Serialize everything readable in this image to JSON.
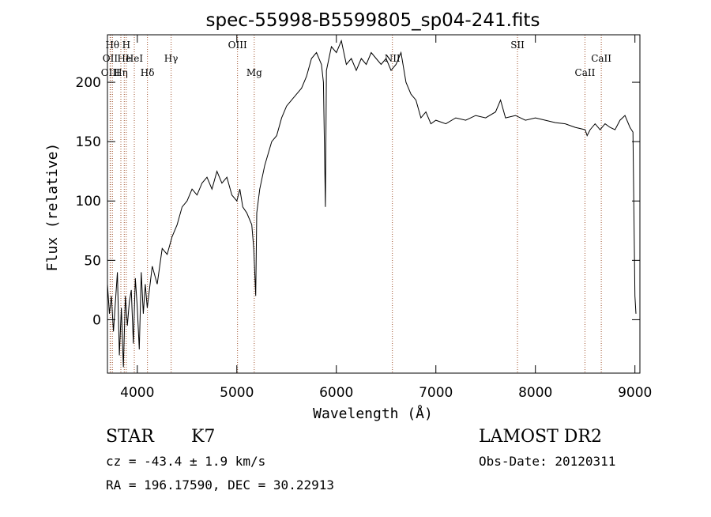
{
  "chart_data": {
    "type": "line",
    "title": "spec-55998-B5599805_sp04-241.fits",
    "xlabel": "Wavelength (Å)",
    "ylabel": "Flux (relative)",
    "xlim": [
      3700,
      9050
    ],
    "ylim": [
      -45,
      240
    ],
    "xticks": [
      4000,
      5000,
      6000,
      7000,
      8000,
      9000
    ],
    "yticks": [
      0,
      50,
      100,
      150,
      200
    ],
    "grid": false,
    "line_color": "#000000",
    "marker_color": "#a0522d",
    "series": [
      {
        "x": [
          3700,
          3720,
          3740,
          3760,
          3780,
          3800,
          3820,
          3840,
          3860,
          3880,
          3900,
          3920,
          3940,
          3960,
          3980,
          4000,
          4020,
          4040,
          4060,
          4080,
          4100,
          4150,
          4200,
          4250,
          4300,
          4350,
          4400,
          4450,
          4500,
          4550,
          4600,
          4650,
          4700,
          4750,
          4800,
          4850,
          4900,
          4950,
          5000,
          5030,
          5060,
          5100,
          5150,
          5170,
          5190,
          5200,
          5230,
          5280,
          5350,
          5400,
          5450,
          5500,
          5550,
          5600,
          5650,
          5700,
          5750,
          5800,
          5850,
          5870,
          5880,
          5890,
          5900,
          5950,
          6000,
          6050,
          6100,
          6150,
          6200,
          6250,
          6300,
          6350,
          6400,
          6450,
          6500,
          6550,
          6600,
          6650,
          6700,
          6750,
          6800,
          6850,
          6900,
          6950,
          7000,
          7100,
          7200,
          7300,
          7400,
          7500,
          7600,
          7650,
          7700,
          7800,
          7900,
          8000,
          8100,
          8200,
          8300,
          8400,
          8500,
          8520,
          8550,
          8600,
          8650,
          8700,
          8750,
          8800,
          8850,
          8900,
          8950,
          8980,
          9000,
          9010
        ],
        "y": [
          30,
          5,
          20,
          -10,
          15,
          40,
          -30,
          10,
          -40,
          20,
          -5,
          15,
          25,
          -20,
          35,
          10,
          -25,
          40,
          5,
          30,
          10,
          45,
          30,
          60,
          55,
          70,
          80,
          95,
          100,
          110,
          105,
          115,
          120,
          110,
          125,
          115,
          120,
          105,
          100,
          110,
          95,
          90,
          80,
          60,
          20,
          90,
          110,
          130,
          150,
          155,
          170,
          180,
          185,
          190,
          195,
          205,
          220,
          225,
          215,
          200,
          150,
          95,
          210,
          230,
          225,
          235,
          215,
          220,
          210,
          220,
          215,
          225,
          220,
          215,
          220,
          210,
          215,
          225,
          200,
          190,
          185,
          170,
          175,
          165,
          168,
          165,
          170,
          168,
          172,
          170,
          175,
          185,
          170,
          172,
          168,
          170,
          168,
          166,
          165,
          162,
          160,
          155,
          160,
          165,
          160,
          165,
          162,
          160,
          168,
          172,
          162,
          158,
          20,
          5
        ]
      }
    ],
    "line_markers": [
      {
        "x": 3750,
        "label": "Hθ",
        "row": 1
      },
      {
        "x": 3727,
        "label": "OII",
        "row": 2
      },
      {
        "x": 3869,
        "label": "He",
        "row": 2
      },
      {
        "x": 3730,
        "label": "OIII",
        "row": 3
      },
      {
        "x": 3835,
        "label": "Hη",
        "row": 3
      },
      {
        "x": 3889,
        "label": "H",
        "row": 1
      },
      {
        "x": 3970,
        "label": "HeI",
        "row": 2
      },
      {
        "x": 4102,
        "label": "Hδ",
        "row": 3
      },
      {
        "x": 4340,
        "label": "Hγ",
        "row": 2
      },
      {
        "x": 5007,
        "label": "OIII",
        "row": 1
      },
      {
        "x": 5175,
        "label": "Mg",
        "row": 3
      },
      {
        "x": 6563,
        "label": "NII",
        "row": 2
      },
      {
        "x": 7820,
        "label": "SII",
        "row": 1
      },
      {
        "x": 8498,
        "label": "CaII",
        "row": 3
      },
      {
        "x": 8662,
        "label": "CaII",
        "row": 2
      }
    ]
  },
  "info": {
    "object_class": "STAR",
    "subclass": "K7",
    "survey": "LAMOST DR2",
    "redshift": "cz = -43.4 ± 1.9 km/s",
    "obs_date": "Obs-Date: 20120311",
    "coords": "RA = 196.17590, DEC =  30.22913"
  }
}
